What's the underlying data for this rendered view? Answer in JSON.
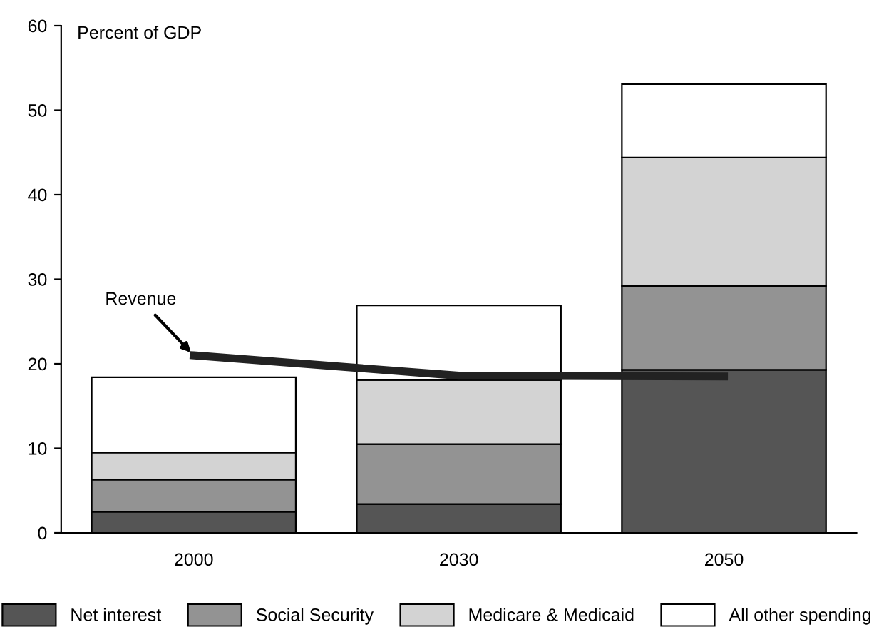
{
  "chart_data": {
    "type": "bar",
    "stacked": true,
    "ylabel": "Percent of GDP",
    "categories": [
      "2000",
      "2030",
      "2050"
    ],
    "series": [
      {
        "name": "Net interest",
        "color": "#555555",
        "values": [
          2.5,
          3.4,
          19.3
        ]
      },
      {
        "name": "Social Security",
        "color": "#939393",
        "values": [
          3.8,
          7.1,
          9.9
        ]
      },
      {
        "name": "Medicare & Medicaid",
        "color": "#d3d3d3",
        "values": [
          3.2,
          7.6,
          15.2
        ]
      },
      {
        "name": "All other spending",
        "color": "#ffffff",
        "values": [
          8.9,
          8.8,
          8.7
        ]
      },
      {
        "name": "Revenue",
        "type": "line",
        "color": "#222222",
        "values": [
          21.0,
          18.6,
          18.5
        ]
      }
    ],
    "ylim": [
      0,
      60
    ],
    "yticks": [
      0,
      10,
      20,
      30,
      40,
      50,
      60
    ],
    "grid": false,
    "legend": "bottom",
    "marker": "none",
    "line_style": "solid"
  }
}
